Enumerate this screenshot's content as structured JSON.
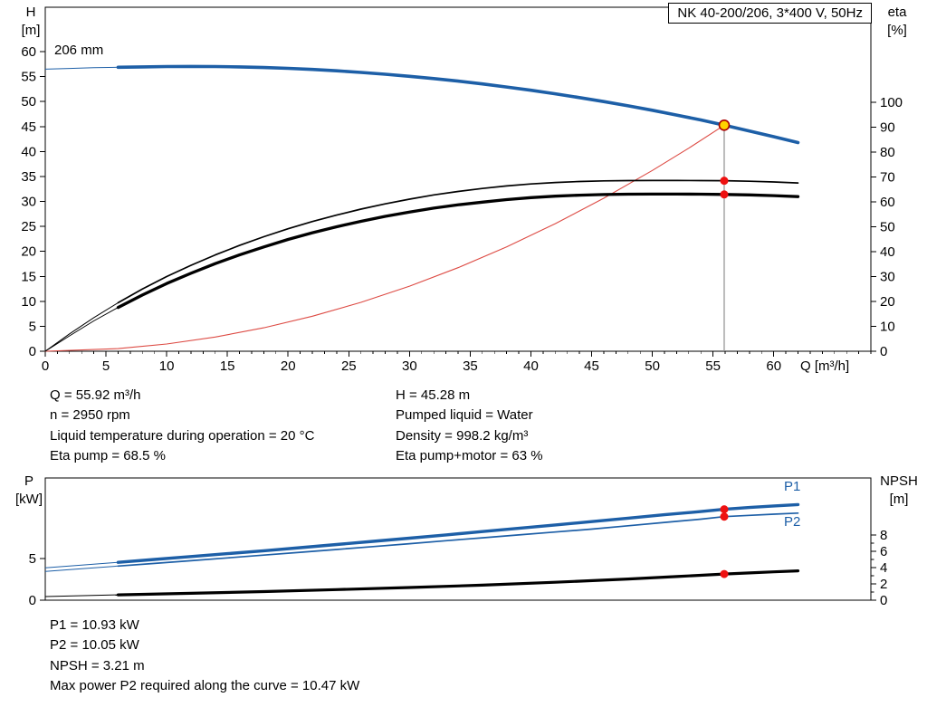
{
  "title_box": {
    "text": "NK 40-200/206, 3*400 V, 50Hz"
  },
  "colors": {
    "curve_blue": "#1d5fa7",
    "curve_black": "#000000",
    "system_red": "#dd4b44",
    "dot_red": "#ee1111",
    "duty_yellow": "#ffd400",
    "duty_ring": "#aa0000",
    "guide_gray": "#909090"
  },
  "top_chart": {
    "y_left_title": [
      "H",
      "[m]"
    ],
    "y_right_title": [
      "eta",
      "[%]"
    ]
  },
  "bottom_chart": {
    "y_left_title": [
      "P",
      "[kW]"
    ],
    "y_right_title": [
      "NPSH",
      "[m]"
    ]
  },
  "operating_info": {
    "left": [
      "Q = 55.92 m³/h",
      "n = 2950 rpm",
      "Liquid temperature during operation = 20 °C",
      "Eta pump = 68.5 %"
    ],
    "right": [
      "H = 45.28 m",
      "Pumped liquid = Water",
      "Density = 998.2 kg/m³",
      "Eta pump+motor = 63 %"
    ]
  },
  "power_info": [
    "P1 = 10.93 kW",
    "P2 = 10.05 kW",
    "NPSH = 3.21 m",
    "Max power P2 required along the curve = 10.47 kW"
  ],
  "chart_data": [
    {
      "type": "line",
      "title": "NK 40-200/206, 3*400 V, 50Hz",
      "xlabel": "Q [m³/h]",
      "ylabel_left": "H [m]",
      "ylabel_right": "eta [%]",
      "xlim": [
        0,
        68
      ],
      "ylim_left": [
        0,
        68.9
      ],
      "ylim_right": [
        0,
        138.2
      ],
      "x_ticks": [
        0,
        5,
        10,
        15,
        20,
        25,
        30,
        35,
        40,
        45,
        50,
        55,
        60
      ],
      "x_minor_step": 1,
      "y_ticks_left": [
        0,
        5,
        10,
        15,
        20,
        25,
        30,
        35,
        40,
        45,
        50,
        55,
        60
      ],
      "y_ticks_right": [
        0,
        10,
        20,
        30,
        40,
        50,
        60,
        70,
        80,
        90,
        100
      ],
      "grid": false,
      "series": [
        {
          "name": "head-curve",
          "label": "206 mm",
          "axis": "left",
          "color": "#1d5fa7",
          "width": 3.6,
          "thin_until": 6,
          "points": [
            [
              0,
              56.5
            ],
            [
              2,
              56.65
            ],
            [
              4,
              56.78
            ],
            [
              6,
              56.88
            ],
            [
              8,
              56.96
            ],
            [
              10,
              57.02
            ],
            [
              12,
              57.05
            ],
            [
              14,
              57.03
            ],
            [
              16,
              56.95
            ],
            [
              18,
              56.83
            ],
            [
              20,
              56.66
            ],
            [
              22,
              56.44
            ],
            [
              24,
              56.17
            ],
            [
              26,
              55.85
            ],
            [
              28,
              55.49
            ],
            [
              30,
              55.07
            ],
            [
              32,
              54.61
            ],
            [
              34,
              54.1
            ],
            [
              36,
              53.54
            ],
            [
              38,
              52.93
            ],
            [
              40,
              52.27
            ],
            [
              42,
              51.57
            ],
            [
              44,
              50.81
            ],
            [
              46,
              50.01
            ],
            [
              48,
              49.16
            ],
            [
              50,
              48.26
            ],
            [
              52,
              47.31
            ],
            [
              54,
              46.32
            ],
            [
              55.92,
              45.28
            ],
            [
              58,
              44.11
            ],
            [
              60,
              42.97
            ],
            [
              62,
              41.79
            ]
          ]
        },
        {
          "name": "system-curve",
          "label": "",
          "axis": "left",
          "color": "#dd4b44",
          "width": 1.1,
          "points": [
            [
              0,
              0
            ],
            [
              6,
              0.52
            ],
            [
              10,
              1.45
            ],
            [
              14,
              2.84
            ],
            [
              18,
              4.69
            ],
            [
              22,
              7.01
            ],
            [
              26,
              9.79
            ],
            [
              30,
              13.03
            ],
            [
              34,
              16.74
            ],
            [
              38,
              20.91
            ],
            [
              42,
              25.54
            ],
            [
              46,
              30.64
            ],
            [
              50,
              36.2
            ],
            [
              53,
              40.67
            ],
            [
              55.92,
              45.28
            ]
          ]
        },
        {
          "name": "eta-pump-curve",
          "label": "",
          "axis": "right",
          "color": "#000000",
          "width": 1.7,
          "thin_until": 6,
          "points": [
            [
              0,
              0
            ],
            [
              2,
              7
            ],
            [
              4,
              13.5
            ],
            [
              6,
              19.5
            ],
            [
              8,
              25
            ],
            [
              10,
              30
            ],
            [
              12,
              34.5
            ],
            [
              14,
              38.7
            ],
            [
              16,
              42.5
            ],
            [
              18,
              46
            ],
            [
              20,
              49.2
            ],
            [
              22,
              52.1
            ],
            [
              24,
              54.7
            ],
            [
              26,
              57.1
            ],
            [
              28,
              59.2
            ],
            [
              30,
              61.1
            ],
            [
              32,
              62.8
            ],
            [
              34,
              64.2
            ],
            [
              36,
              65.4
            ],
            [
              38,
              66.4
            ],
            [
              40,
              67.2
            ],
            [
              42,
              67.8
            ],
            [
              44,
              68.2
            ],
            [
              46,
              68.45
            ],
            [
              48,
              68.55
            ],
            [
              50,
              68.6
            ],
            [
              52,
              68.6
            ],
            [
              54,
              68.55
            ],
            [
              55.92,
              68.5
            ],
            [
              58,
              68.3
            ],
            [
              60,
              68
            ],
            [
              62,
              67.6
            ]
          ]
        },
        {
          "name": "eta-pump-motor-curve",
          "label": "",
          "axis": "right",
          "color": "#000000",
          "width": 3.3,
          "thin_until": 6,
          "points": [
            [
              0,
              0
            ],
            [
              2,
              6.2
            ],
            [
              4,
              12.2
            ],
            [
              6,
              17.6
            ],
            [
              8,
              22.6
            ],
            [
              10,
              27.2
            ],
            [
              12,
              31.3
            ],
            [
              14,
              35.2
            ],
            [
              16,
              38.7
            ],
            [
              18,
              41.9
            ],
            [
              20,
              44.9
            ],
            [
              22,
              47.6
            ],
            [
              24,
              50
            ],
            [
              26,
              52.2
            ],
            [
              28,
              54.2
            ],
            [
              30,
              55.9
            ],
            [
              32,
              57.5
            ],
            [
              34,
              58.8
            ],
            [
              36,
              59.9
            ],
            [
              38,
              60.9
            ],
            [
              40,
              61.7
            ],
            [
              42,
              62.3
            ],
            [
              44,
              62.7
            ],
            [
              46,
              62.95
            ],
            [
              48,
              63.1
            ],
            [
              50,
              63.15
            ],
            [
              52,
              63.15
            ],
            [
              54,
              63.1
            ],
            [
              55.92,
              63
            ],
            [
              58,
              62.8
            ],
            [
              60,
              62.5
            ],
            [
              62,
              62.1
            ]
          ]
        }
      ],
      "duty": {
        "q": 55.92,
        "h": 45.28,
        "eta_pump": 68.5,
        "eta_pump_motor": 63
      }
    },
    {
      "type": "line",
      "title": "",
      "xlabel": "",
      "ylabel_left": "P [kW]",
      "ylabel_right": "NPSH [m]",
      "xlim": [
        0,
        68
      ],
      "ylim_left": [
        0,
        14.7
      ],
      "ylim_right": [
        0,
        15
      ],
      "x_ticks": [],
      "y_ticks_left": [
        0,
        5
      ],
      "y_ticks_right": [
        0,
        2,
        4,
        6,
        8
      ],
      "y_minor_right": [
        1,
        3,
        5,
        7
      ],
      "grid": false,
      "series": [
        {
          "name": "p1-curve",
          "label": "P1",
          "axis": "left",
          "color": "#1d5fa7",
          "width": 3.4,
          "thin_until": 6,
          "points": [
            [
              0,
              3.9
            ],
            [
              3,
              4.22
            ],
            [
              6,
              4.55
            ],
            [
              9,
              4.9
            ],
            [
              12,
              5.25
            ],
            [
              15,
              5.6
            ],
            [
              18,
              5.95
            ],
            [
              21,
              6.32
            ],
            [
              24,
              6.7
            ],
            [
              27,
              7.08
            ],
            [
              30,
              7.46
            ],
            [
              33,
              7.85
            ],
            [
              36,
              8.25
            ],
            [
              39,
              8.65
            ],
            [
              42,
              9.05
            ],
            [
              45,
              9.45
            ],
            [
              48,
              9.86
            ],
            [
              51,
              10.28
            ],
            [
              54,
              10.66
            ],
            [
              55.92,
              10.93
            ],
            [
              58,
              11.15
            ],
            [
              60,
              11.34
            ],
            [
              62,
              11.5
            ]
          ]
        },
        {
          "name": "p2-curve",
          "label": "P2",
          "axis": "left",
          "color": "#1d5fa7",
          "width": 1.7,
          "thin_until": 6,
          "points": [
            [
              0,
              3.45
            ],
            [
              3,
              3.78
            ],
            [
              6,
              4.1
            ],
            [
              9,
              4.42
            ],
            [
              12,
              4.75
            ],
            [
              15,
              5.08
            ],
            [
              18,
              5.42
            ],
            [
              21,
              5.76
            ],
            [
              24,
              6.1
            ],
            [
              27,
              6.45
            ],
            [
              30,
              6.8
            ],
            [
              33,
              7.15
            ],
            [
              36,
              7.5
            ],
            [
              39,
              7.85
            ],
            [
              42,
              8.2
            ],
            [
              45,
              8.55
            ],
            [
              48,
              8.95
            ],
            [
              51,
              9.35
            ],
            [
              54,
              9.75
            ],
            [
              55.92,
              10.05
            ],
            [
              58,
              10.2
            ],
            [
              60,
              10.34
            ],
            [
              62,
              10.47
            ]
          ]
        },
        {
          "name": "npsh-curve",
          "label": "",
          "axis": "right",
          "color": "#000000",
          "width": 3.2,
          "thin_until": 6,
          "points": [
            [
              0,
              0.45
            ],
            [
              6,
              0.65
            ],
            [
              12,
              0.85
            ],
            [
              18,
              1.05
            ],
            [
              24,
              1.3
            ],
            [
              30,
              1.55
            ],
            [
              36,
              1.85
            ],
            [
              42,
              2.2
            ],
            [
              48,
              2.6
            ],
            [
              52,
              2.9
            ],
            [
              55.92,
              3.21
            ],
            [
              58,
              3.35
            ],
            [
              60,
              3.48
            ],
            [
              62,
              3.6
            ]
          ]
        }
      ],
      "duty": {
        "q": 55.92,
        "p1": 10.93,
        "p2": 10.05,
        "npsh": 3.21
      }
    }
  ]
}
